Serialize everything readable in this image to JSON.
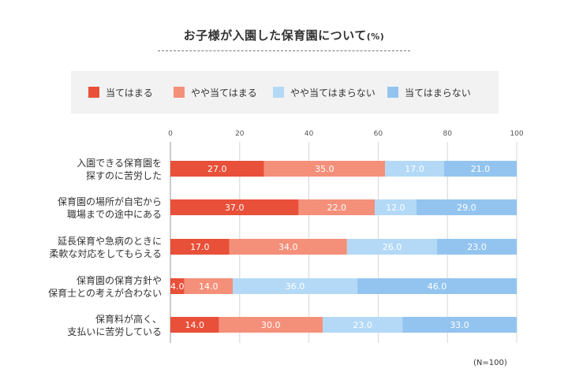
{
  "title": "お子様が入園した保育園について",
  "title_unit": "(%)",
  "footnote": "(N=100)",
  "colors": [
    "#e8503a",
    "#f4907a",
    "#b3d9f7",
    "#93c4ef"
  ],
  "chart_data": {
    "type": "bar",
    "orientation": "horizontal",
    "stacked": true,
    "xlim": [
      0,
      100
    ],
    "xticks": [
      0,
      20,
      40,
      60,
      80,
      100
    ],
    "xtick_labels": [
      "0",
      "20",
      "40",
      "60",
      "80",
      "100"
    ],
    "legend_position": "top",
    "categories": [
      [
        "入園できる保育園を",
        "探すのに苦労した"
      ],
      [
        "保育園の場所が自宅から",
        "職場までの途中にある"
      ],
      [
        "延長保育や急病のときに",
        "柔軟な対応をしてもらえる"
      ],
      [
        "保育園の保育方針や",
        "保育士との考えが合わない"
      ],
      [
        "保育料が高く、",
        "支払いに苦労している"
      ]
    ],
    "series": [
      {
        "name": "当てはまる",
        "values": [
          27.0,
          37.0,
          17.0,
          4.0,
          14.0
        ],
        "labels": [
          "27.0",
          "37.0",
          "17.0",
          "4.0",
          "14.0"
        ]
      },
      {
        "name": "やや当てはまる",
        "values": [
          35.0,
          22.0,
          34.0,
          14.0,
          30.0
        ],
        "labels": [
          "35.0",
          "22.0",
          "34.0",
          "14.0",
          "30.0"
        ]
      },
      {
        "name": "やや当てはまらない",
        "values": [
          17.0,
          12.0,
          26.0,
          36.0,
          23.0
        ],
        "labels": [
          "17.0",
          "12.0",
          "26.0",
          "36.0",
          "23.0"
        ]
      },
      {
        "name": "当てはまらない",
        "values": [
          21.0,
          29.0,
          23.0,
          46.0,
          33.0
        ],
        "labels": [
          "21.0",
          "29.0",
          "23.0",
          "46.0",
          "33.0"
        ]
      }
    ]
  }
}
